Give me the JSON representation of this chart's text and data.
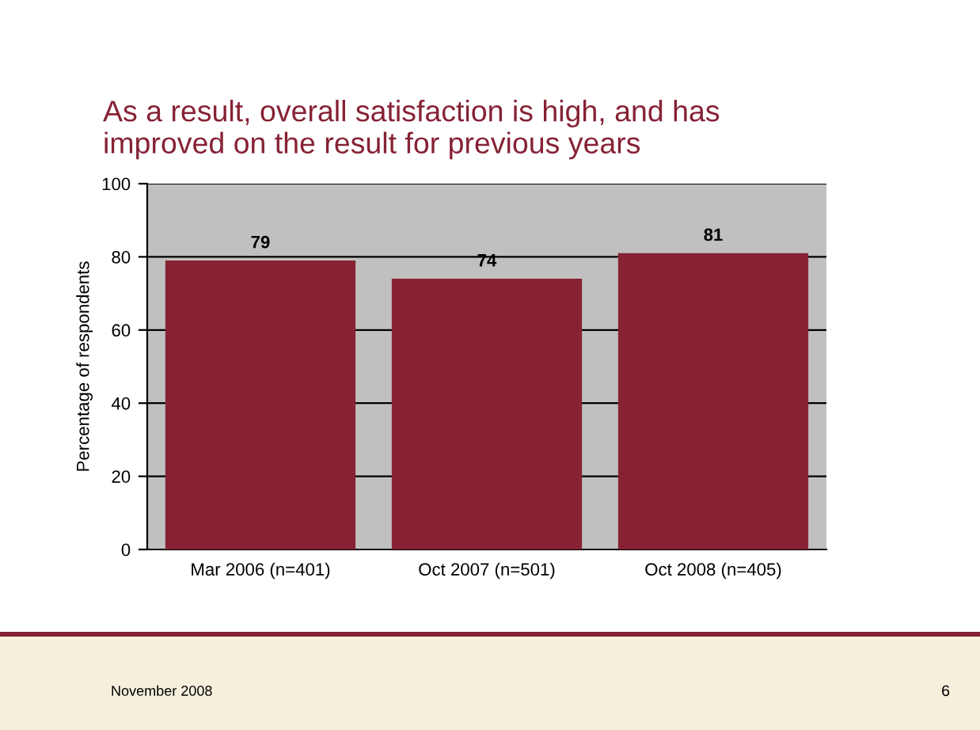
{
  "chart_data": {
    "type": "bar",
    "title": "As a result, overall satisfaction is high, and has\nimproved on the result for previous years",
    "ylabel": "Percentage of respondents",
    "categories": [
      "Mar 2006 (n=401)",
      "Oct 2007 (n=501)",
      "Oct 2008 (n=405)"
    ],
    "values": [
      79,
      74,
      81
    ],
    "color": "#862234",
    "ylim": [
      0,
      100
    ],
    "yticks": [
      0,
      20,
      40,
      60,
      80,
      100
    ],
    "grid": "y",
    "data_labels": true,
    "annotations": [
      "November 2008",
      "6"
    ]
  }
}
